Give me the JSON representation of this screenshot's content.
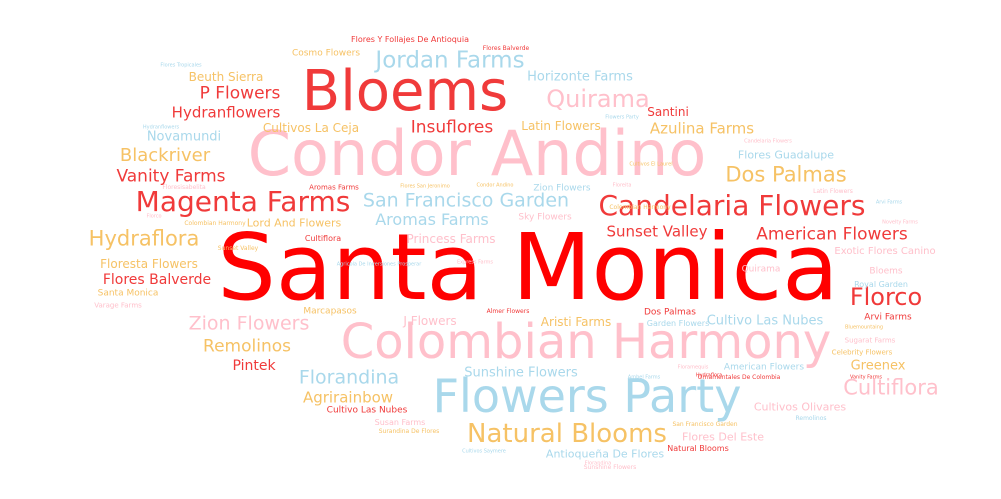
{
  "words": [
    {
      "text": "Santa Monica",
      "color": "red"
    },
    {
      "text": "Condor Andino",
      "color": "pink"
    },
    {
      "text": "Bloems",
      "color": "red2"
    },
    {
      "text": "Colombian Harmony",
      "color": "pink"
    },
    {
      "text": "Flowers Party",
      "color": "blue"
    },
    {
      "text": "Magenta Farms",
      "color": "red2"
    },
    {
      "text": "Candelaria Flowers",
      "color": "red2"
    },
    {
      "text": "Natural Blooms",
      "color": "gold"
    },
    {
      "text": "Jordan Farms",
      "color": "blue"
    },
    {
      "text": "Quirama",
      "color": "pink"
    },
    {
      "text": "Dos Palmas",
      "color": "gold"
    },
    {
      "text": "Florco",
      "color": "red2"
    },
    {
      "text": "Hydraflora",
      "color": "gold"
    },
    {
      "text": "Zion Flowers",
      "color": "pink"
    },
    {
      "text": "Cultiflora",
      "color": "pink"
    },
    {
      "text": "San Francisco Garden",
      "color": "blue"
    },
    {
      "text": "Insuflores",
      "color": "red2"
    },
    {
      "text": "American Flowers",
      "color": "red2"
    },
    {
      "text": "Blackriver",
      "color": "gold"
    },
    {
      "text": "Vanity Farms",
      "color": "red2"
    },
    {
      "text": "Aromas Farms",
      "color": "blue"
    },
    {
      "text": "Florandina",
      "color": "blue"
    },
    {
      "text": "Remolinos",
      "color": "gold"
    },
    {
      "text": "P Flowers",
      "color": "red2"
    },
    {
      "text": "Hydranflowers",
      "color": "red2"
    },
    {
      "text": "Sunset Valley",
      "color": "red2"
    },
    {
      "text": "Azulina Farms",
      "color": "gold"
    },
    {
      "text": "Agrirainbow",
      "color": "gold"
    },
    {
      "text": "Cultivo Las Nubes",
      "color": "blue"
    },
    {
      "text": "Flores Balverde",
      "color": "red2"
    },
    {
      "text": "Horizonte Farms",
      "color": "blue"
    },
    {
      "text": "Novamundi",
      "color": "blue"
    },
    {
      "text": "Sunshine Flowers",
      "color": "blue"
    },
    {
      "text": "Pintek",
      "color": "red2"
    },
    {
      "text": "Floresta Flowers",
      "color": "gold"
    },
    {
      "text": "Princess Farms",
      "color": "pink"
    },
    {
      "text": "Latin Flowers",
      "color": "gold"
    },
    {
      "text": "Cultivos La Ceja",
      "color": "gold"
    },
    {
      "text": "Beuth Sierra",
      "color": "gold"
    },
    {
      "text": "Santini",
      "color": "red2"
    },
    {
      "text": "Greenex",
      "color": "gold"
    },
    {
      "text": "Lord And Flowers",
      "color": "gold"
    },
    {
      "text": "Flores Guadalupe",
      "color": "blue"
    },
    {
      "text": "Aristi Farms",
      "color": "gold"
    },
    {
      "text": "J Flowers",
      "color": "pink"
    },
    {
      "text": "Antioqueña De Flores",
      "color": "blue"
    },
    {
      "text": "Flores Del Este",
      "color": "pink"
    },
    {
      "text": "Cultivos Olivares",
      "color": "pink"
    },
    {
      "text": "Cosmo Flowers",
      "color": "gold"
    },
    {
      "text": "Flores Y Follajes De Antioquia",
      "color": "red2"
    },
    {
      "text": "Flores Balverde",
      "color": "red2"
    },
    {
      "text": "Flores Tropicales",
      "color": "blue"
    },
    {
      "text": "Flowers Party",
      "color": "blue"
    },
    {
      "text": "Cultivos El Laurel",
      "color": "gold"
    },
    {
      "text": "Hydranflowers",
      "color": "blue"
    },
    {
      "text": "Candelaria Flowers",
      "color": "pink"
    },
    {
      "text": "Floresisabelita",
      "color": "pink"
    },
    {
      "text": "Aromas Farms",
      "color": "red2"
    },
    {
      "text": "Flores San Jeronimo",
      "color": "gold"
    },
    {
      "text": "Condor Andino",
      "color": "gold"
    },
    {
      "text": "Zion Flowers",
      "color": "blue"
    },
    {
      "text": "Floreita",
      "color": "pink"
    },
    {
      "text": "Latin Flowers",
      "color": "pink"
    },
    {
      "text": "Agricola De Inversiones Prosperar",
      "color": "blue"
    },
    {
      "text": "Colombian Harmony",
      "color": "gold"
    },
    {
      "text": "Sky Flowers",
      "color": "pink"
    },
    {
      "text": "Novelty Farms",
      "color": "pink"
    },
    {
      "text": "Sunset Valley",
      "color": "gold"
    },
    {
      "text": "Cultiflora",
      "color": "red2"
    },
    {
      "text": "Exotic Flores Canino",
      "color": "pink"
    },
    {
      "text": "Express Farms",
      "color": "pink"
    },
    {
      "text": "Quirama",
      "color": "pink"
    },
    {
      "text": "Bloems",
      "color": "pink"
    },
    {
      "text": "Royal Garden",
      "color": "blue"
    },
    {
      "text": "Santa Monica",
      "color": "gold"
    },
    {
      "text": "Varage Farms",
      "color": "pink"
    },
    {
      "text": "Marcapasos",
      "color": "gold"
    },
    {
      "text": "Almer Flowers",
      "color": "red2"
    },
    {
      "text": "Dos Palmas",
      "color": "red2"
    },
    {
      "text": "Garden Flowers",
      "color": "blue"
    },
    {
      "text": "Arvi Farms",
      "color": "red2"
    },
    {
      "text": "Bluemountaing",
      "color": "gold"
    },
    {
      "text": "Sugarat Farms",
      "color": "pink"
    },
    {
      "text": "Celebrity Flowers",
      "color": "gold"
    },
    {
      "text": "Floramequis",
      "color": "pink"
    },
    {
      "text": "American Flowers",
      "color": "blue"
    },
    {
      "text": "Ornamentales De Colombia",
      "color": "red2"
    },
    {
      "text": "Hydraflora",
      "color": "red2"
    },
    {
      "text": "Vanity Farms",
      "color": "red2"
    },
    {
      "text": "Cultivo Las Nubes",
      "color": "red2"
    },
    {
      "text": "Susan Farms",
      "color": "pink"
    },
    {
      "text": "Surandina De Flores",
      "color": "gold"
    },
    {
      "text": "San Francisco Garden",
      "color": "gold"
    },
    {
      "text": "Remolinos",
      "color": "blue"
    },
    {
      "text": "Cultivos Saymere",
      "color": "blue"
    },
    {
      "text": "Natural Blooms",
      "color": "red2"
    },
    {
      "text": "Florandina",
      "color": "pink"
    },
    {
      "text": "Sunshine Flowers",
      "color": "pink"
    },
    {
      "text": "Colombian Harmony",
      "color": "gold"
    },
    {
      "text": "Arvi Farms",
      "color": "blue"
    },
    {
      "text": "Ambel Farms",
      "color": "blue"
    },
    {
      "text": "Florco",
      "color": "pink"
    },
    {
      "text": "Candelaria Flowers",
      "color": "red2"
    }
  ]
}
